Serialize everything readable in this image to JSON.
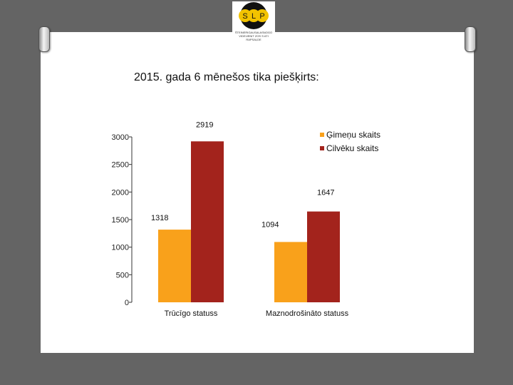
{
  "colors": {
    "background": "#646464",
    "series1": "#f9a11b",
    "series2": "#a3231c"
  },
  "logo": {
    "letters": [
      "S",
      "L",
      "P"
    ],
    "caption": [
      "ŠTEINERIGAUSALASŅOGO",
      "VIDEIJENIT ZOS S ATI",
      "RAPSAĻDE"
    ]
  },
  "slide": {
    "title": "2015. gada 6 mēnešos tika piešķirts:"
  },
  "chart_data": {
    "type": "bar",
    "title": "",
    "categories": [
      "Trūcīgo statuss",
      "Maznodrošināto statuss"
    ],
    "series": [
      {
        "name": "Ģimeņu skaits",
        "values": [
          1318,
          1094
        ]
      },
      {
        "name": "Cilvēku skaits",
        "values": [
          2919,
          1647
        ]
      }
    ],
    "ylim": [
      0,
      3000
    ],
    "yticks": [
      "0",
      "500",
      "1000",
      "1500",
      "2000",
      "2500",
      "3000"
    ],
    "grid": false,
    "legend": "top-right",
    "data_labels": [
      "1318",
      "2919",
      "1094",
      "1647"
    ]
  }
}
